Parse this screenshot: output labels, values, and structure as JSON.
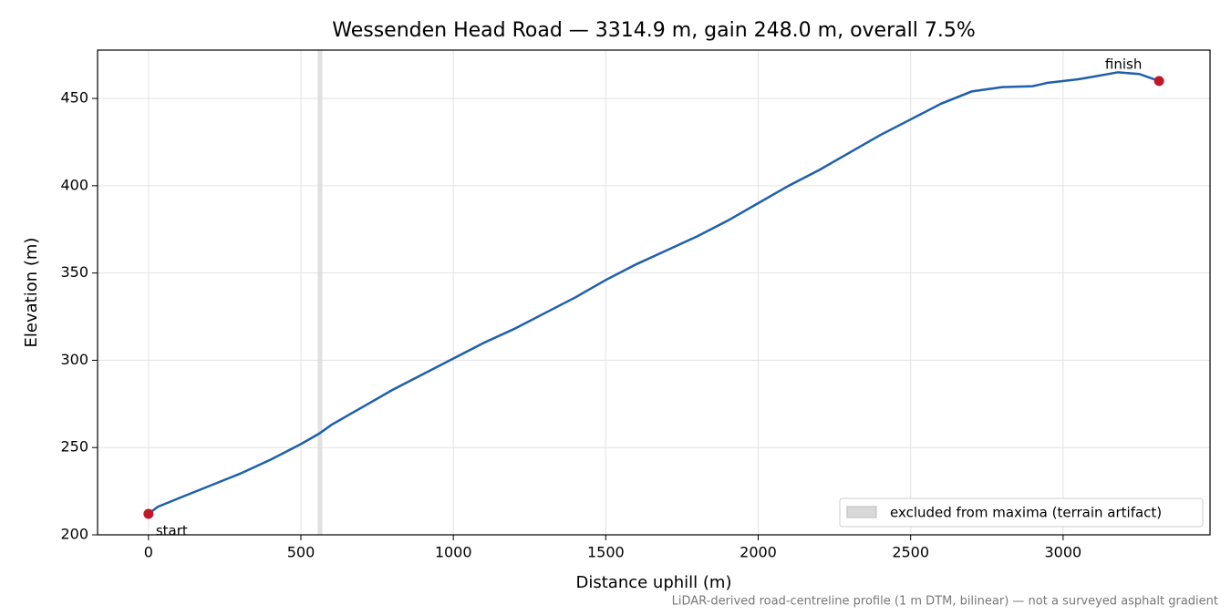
{
  "chart_data": {
    "type": "line",
    "title": "Wessenden Head Road — 3314.9 m, gain 248.0 m, overall 7.5%",
    "x_label": "Distance uphill (m)",
    "y_label": "Elevation (m)",
    "note": "LiDAR-derived road-centreline profile (1 m DTM, bilinear) — not a surveyed asphalt gradient",
    "x": [
      0,
      30,
      100,
      200,
      300,
      400,
      500,
      560,
      600,
      700,
      800,
      900,
      1000,
      1100,
      1200,
      1300,
      1400,
      1500,
      1600,
      1700,
      1800,
      1900,
      2000,
      2100,
      2200,
      2300,
      2400,
      2500,
      2600,
      2700,
      2800,
      2900,
      2950,
      3050,
      3100,
      3180,
      3250,
      3314.9
    ],
    "series": [
      {
        "color": "#1f5fad",
        "values": [
          212,
          216,
          221,
          228,
          235,
          243,
          252,
          258,
          263,
          273,
          283,
          292,
          301,
          310,
          318,
          327,
          336,
          346,
          355,
          363,
          371,
          380,
          390,
          400,
          409,
          419,
          429,
          438,
          447,
          454,
          456.5,
          457,
          459,
          461,
          462.5,
          465,
          464,
          460
        ]
      }
    ],
    "markers": [
      {
        "label": "start",
        "x": 0,
        "y": 212
      },
      {
        "label": "finish",
        "x": 3314.9,
        "y": 460
      }
    ],
    "marker_color": "#c0182a",
    "excluded_band": {
      "label": "excluded from maxima (terrain artifact)",
      "range": [
        555,
        570
      ],
      "color": "#d9d9d9"
    },
    "legend": "lower right",
    "grid": true,
    "xlim": [
      -167,
      3482
    ],
    "ylim": [
      200,
      477.7
    ],
    "xticks": [
      0,
      500,
      1000,
      1500,
      2000,
      2500,
      3000
    ],
    "yticks": [
      200,
      250,
      300,
      350,
      400,
      450
    ]
  }
}
